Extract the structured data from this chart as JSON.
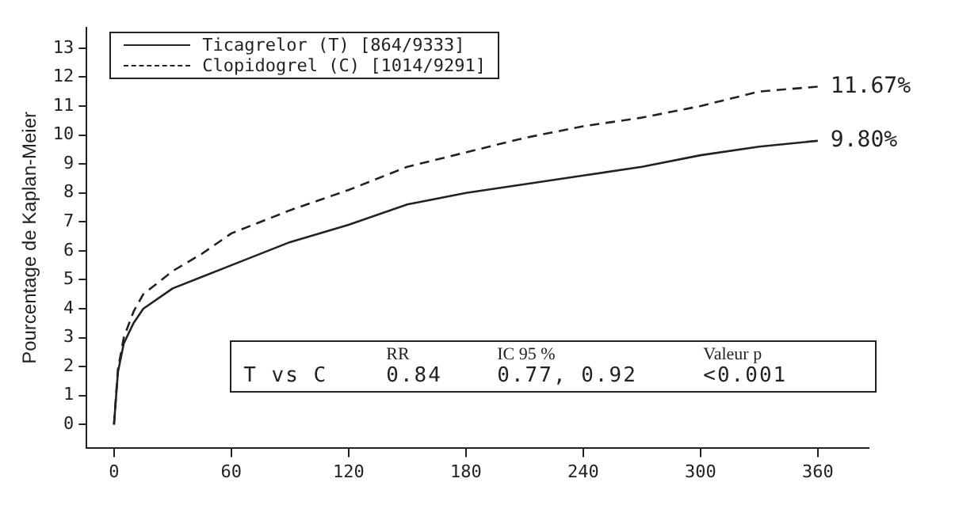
{
  "chart_data": {
    "type": "line",
    "ylabel": "Pourcentage de Kaplan-Meier",
    "x": [
      0,
      2,
      5,
      10,
      15,
      30,
      45,
      60,
      90,
      120,
      150,
      180,
      210,
      240,
      270,
      300,
      330,
      360
    ],
    "series": [
      {
        "name": "Ticagrelor (T) [864/9333]",
        "color": "#222222",
        "line_style": "solid",
        "values": [
          0,
          1.8,
          2.8,
          3.5,
          4.0,
          4.7,
          5.1,
          5.5,
          6.3,
          6.9,
          7.6,
          8.0,
          8.3,
          8.6,
          8.9,
          9.3,
          9.6,
          9.8
        ]
      },
      {
        "name": "Clopidogrel (C) [1014/9291]",
        "color": "#222222",
        "line_style": "dashed",
        "values": [
          0,
          1.9,
          3.0,
          3.9,
          4.5,
          5.3,
          5.9,
          6.6,
          7.4,
          8.1,
          8.9,
          9.4,
          9.9,
          10.3,
          10.6,
          11.0,
          11.5,
          11.67
        ]
      }
    ],
    "xlim": [
      -14,
      386
    ],
    "xticks": [
      0,
      60,
      120,
      180,
      240,
      300,
      360
    ],
    "ylim": [
      -0.8,
      13.7
    ],
    "yticks": [
      0,
      1,
      2,
      3,
      4,
      5,
      6,
      7,
      8,
      9,
      10,
      11,
      12,
      13
    ],
    "grid": false,
    "legend": "top left",
    "marker": "none",
    "annotations": [
      {
        "text": "11.67%",
        "x": 360,
        "y": 11.67
      },
      {
        "text": "9.80%",
        "x": 360,
        "y": 9.8
      },
      "RR",
      "IC 95 %",
      "Valeur p",
      "T vs C",
      "0.84",
      "0.77, 0.92",
      "<0.001"
    ]
  }
}
